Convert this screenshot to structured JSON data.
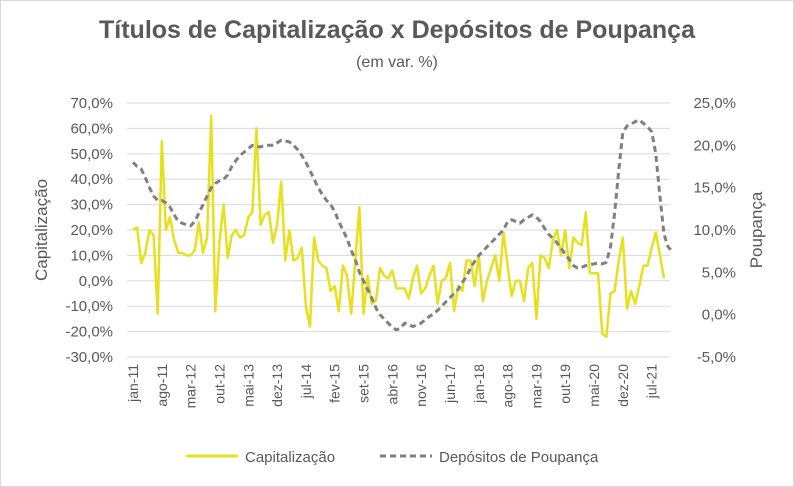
{
  "chart_data": {
    "type": "line",
    "title": "Títulos de Capitalização x Depósitos de Poupança",
    "subtitle": "(em var. %)",
    "ylabel_left": "Capitalização",
    "ylabel_right": "Poupança",
    "ylim_left": [
      -30,
      70
    ],
    "ylim_right": [
      -5,
      25
    ],
    "yticks_left": [
      "70,0%",
      "60,0%",
      "50,0%",
      "40,0%",
      "30,0%",
      "20,0%",
      "10,0%",
      "0,0%",
      "-10,0%",
      "-20,0%",
      "-30,0%"
    ],
    "yticks_right": [
      "25,0%",
      "20,0%",
      "15,0%",
      "10,0%",
      "5,0%",
      "0,0%",
      "-5,0%"
    ],
    "x_tick_labels": [
      "jan-11",
      "ago-11",
      "mar-12",
      "out-12",
      "mai-13",
      "dez-13",
      "jul-14",
      "fev-15",
      "set-15",
      "abr-16",
      "nov-16",
      "jun-17",
      "jan-18",
      "ago-18",
      "mar-19",
      "out-19",
      "mai-20",
      "dez-20",
      "jul-21"
    ],
    "x_start": "jan-11",
    "x_end": "jul-21",
    "legend_position": "bottom",
    "series": [
      {
        "name": "Capitalização",
        "axis": "left",
        "color": "#e6e01e",
        "style": "solid",
        "values": [
          20,
          21,
          7,
          11,
          20,
          18,
          -13,
          55,
          20,
          25,
          16,
          11,
          11,
          10,
          10,
          12,
          23,
          11,
          17,
          65,
          -12,
          15,
          30,
          9,
          18,
          20,
          17,
          18,
          25,
          27,
          60,
          22,
          26,
          27,
          15,
          22,
          39,
          8,
          20,
          8,
          9,
          13,
          -10,
          -18,
          17,
          8,
          6,
          5,
          -4,
          -2,
          -12,
          6,
          2,
          -13,
          8,
          29,
          -13,
          2,
          -9,
          -8,
          5,
          2,
          1,
          4,
          -3,
          -3,
          -3,
          -7,
          1,
          6,
          -5,
          -3,
          2,
          6,
          -9,
          0,
          1,
          7,
          -12,
          -2,
          -4,
          8,
          8,
          -2,
          10,
          -8,
          0,
          5,
          10,
          0,
          19,
          6,
          -6,
          0,
          0,
          -8,
          5,
          7,
          -15,
          10,
          9,
          5,
          16,
          20,
          10,
          20,
          5,
          17,
          15,
          14,
          27,
          3,
          3,
          3,
          -21,
          -22,
          -5,
          -4,
          8,
          17,
          -11,
          -4,
          -9,
          -2,
          6,
          6,
          13,
          19,
          10,
          1
        ]
      },
      {
        "name": "Depósitos de Poupança",
        "axis": "right",
        "color": "#808080",
        "style": "dashed",
        "values": [
          18,
          17.5,
          17.2,
          16.2,
          15,
          14,
          13.5,
          13.5,
          13.2,
          12.7,
          11.8,
          11,
          10.8,
          10.6,
          10.5,
          11,
          12,
          13,
          14,
          15,
          15.5,
          15.8,
          16,
          16.5,
          17.5,
          18.2,
          18.8,
          19.2,
          19.6,
          20,
          19.9,
          19.8,
          20,
          20,
          20,
          20.3,
          20.6,
          20.5,
          20.4,
          20,
          19.5,
          18.8,
          18,
          17,
          16,
          15,
          14.2,
          13.5,
          13,
          12.2,
          11,
          10,
          9,
          7.6,
          6.5,
          5,
          4,
          3,
          2,
          0.8,
          0,
          -0.5,
          -1,
          -1.5,
          -1.8,
          -1.6,
          -1,
          -1.2,
          -1.4,
          -1.2,
          -1,
          -0.6,
          -0.2,
          0.1,
          0.5,
          1,
          1.5,
          2,
          2.5,
          3,
          3.8,
          4.5,
          5.5,
          6.3,
          7,
          7.5,
          8,
          8.5,
          9,
          9.5,
          10,
          11,
          11.2,
          11,
          10.8,
          11.2,
          11.5,
          11.8,
          11.5,
          11,
          10.2,
          9.5,
          9,
          8.5,
          7.8,
          7.2,
          6.5,
          5.8,
          5.5,
          5.6,
          5.8,
          5.9,
          6,
          6.1,
          6,
          6.2,
          8,
          12,
          17,
          21.5,
          22.3,
          22.5,
          22.8,
          23,
          22.6,
          22.2,
          21.6,
          19,
          14,
          9.5,
          8,
          7.5
        ]
      }
    ]
  }
}
